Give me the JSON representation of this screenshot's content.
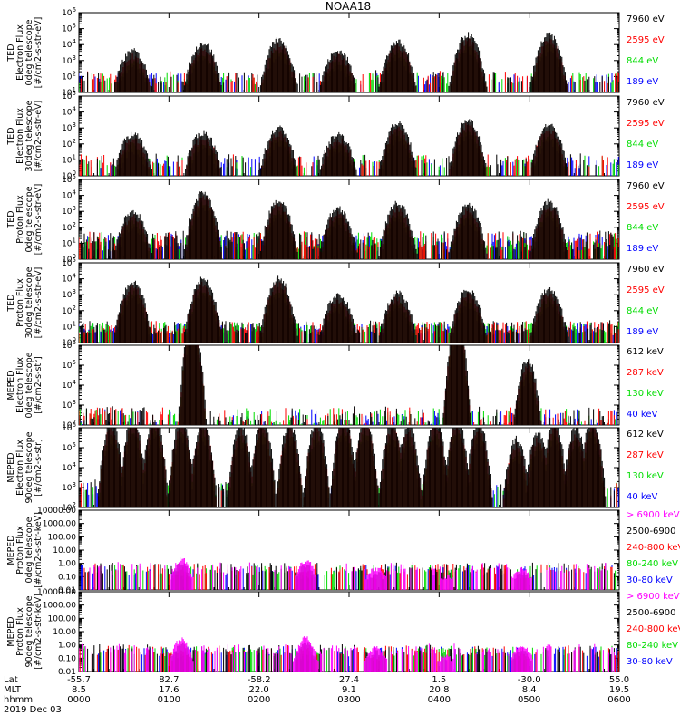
{
  "chart_data": {
    "type": "line",
    "title": "NOAA18",
    "date_label": "2019 Dec 03",
    "x_axis": {
      "row_labels": [
        "Lat",
        "MLT",
        "hhmm"
      ],
      "ticks": [
        {
          "Lat": "-55.7",
          "MLT": "8.5",
          "hhmm": "0000"
        },
        {
          "Lat": "82.7",
          "MLT": "17.6",
          "hhmm": "0100"
        },
        {
          "Lat": "-58.2",
          "MLT": "22.0",
          "hhmm": "0200"
        },
        {
          "Lat": "27.4",
          "MLT": "9.1",
          "hhmm": "0300"
        },
        {
          "Lat": "1.5",
          "MLT": "20.8",
          "hhmm": "0400"
        },
        {
          "Lat": "-30.0",
          "MLT": "8.4",
          "hhmm": "0500"
        },
        {
          "Lat": "55.0",
          "MLT": "19.5",
          "hhmm": "0600"
        }
      ]
    },
    "panels": [
      {
        "ylabel": [
          "TED",
          "Electron Flux",
          "0deg telescope",
          "[#/cm2-s-str-eV]"
        ],
        "yscale": "log",
        "ytick_labels": [
          "10^1",
          "10^2",
          "10^3",
          "10^4",
          "10^5",
          "10^6"
        ],
        "series": [
          {
            "name": "7960 eV",
            "color": "#000000"
          },
          {
            "name": "2595 eV",
            "color": "#ff0000"
          },
          {
            "name": "844 eV",
            "color": "#00dd00"
          },
          {
            "name": "189 eV",
            "color": "#0000ff"
          }
        ],
        "events": [
          [
            0.1,
            2.6
          ],
          [
            0.23,
            3.1
          ],
          [
            0.37,
            3.3
          ],
          [
            0.48,
            2.6
          ],
          [
            0.59,
            3.2
          ],
          [
            0.72,
            3.6
          ],
          [
            0.87,
            3.6
          ]
        ],
        "style": "electron"
      },
      {
        "ylabel": [
          "TED",
          "Electron Flux",
          "30deg telescope",
          "[#/cm2-s-str-eV]"
        ],
        "yscale": "log",
        "ytick_labels": [
          "10^0",
          "10^1",
          "10^2",
          "10^3",
          "10^4",
          "10^5"
        ],
        "series": [
          {
            "name": "7960 eV",
            "color": "#000000"
          },
          {
            "name": "2595 eV",
            "color": "#ff0000"
          },
          {
            "name": "844 eV",
            "color": "#00dd00"
          },
          {
            "name": "189 eV",
            "color": "#0000ff"
          }
        ],
        "events": [
          [
            0.1,
            2.6
          ],
          [
            0.23,
            2.7
          ],
          [
            0.37,
            3.0
          ],
          [
            0.48,
            2.6
          ],
          [
            0.59,
            3.3
          ],
          [
            0.72,
            3.5
          ],
          [
            0.87,
            3.2
          ]
        ],
        "style": "electron"
      },
      {
        "ylabel": [
          "TED",
          "Proton Flux",
          "0deg telescope",
          "[#/cm2-s-str-eV]"
        ],
        "yscale": "log",
        "ytick_labels": [
          "10^0",
          "10^1",
          "10^2",
          "10^3",
          "10^4",
          "10^5"
        ],
        "series": [
          {
            "name": "7960 eV",
            "color": "#000000"
          },
          {
            "name": "2595 eV",
            "color": "#ff0000"
          },
          {
            "name": "844 eV",
            "color": "#00dd00"
          },
          {
            "name": "189 eV",
            "color": "#0000ff"
          }
        ],
        "events": [
          [
            0.1,
            3.0
          ],
          [
            0.23,
            4.2
          ],
          [
            0.37,
            3.7
          ],
          [
            0.48,
            3.2
          ],
          [
            0.59,
            3.5
          ],
          [
            0.72,
            3.4
          ],
          [
            0.87,
            3.6
          ]
        ],
        "style": "proton"
      },
      {
        "ylabel": [
          "TED",
          "Proton Flux",
          "30deg telescope",
          "[#/cm2-s-str-eV]"
        ],
        "yscale": "log",
        "ytick_labels": [
          "10^0",
          "10^1",
          "10^2",
          "10^3",
          "10^4",
          "10^5"
        ],
        "series": [
          {
            "name": "7960 eV",
            "color": "#000000"
          },
          {
            "name": "2595 eV",
            "color": "#ff0000"
          },
          {
            "name": "844 eV",
            "color": "#00dd00"
          },
          {
            "name": "189 eV",
            "color": "#0000ff"
          }
        ],
        "events": [
          [
            0.1,
            3.8
          ],
          [
            0.23,
            4.0
          ],
          [
            0.37,
            4.0
          ],
          [
            0.48,
            3.0
          ],
          [
            0.59,
            3.1
          ],
          [
            0.72,
            3.3
          ],
          [
            0.87,
            3.4
          ]
        ],
        "style": "proton30"
      },
      {
        "ylabel": [
          "MEPED",
          "Electron Flux",
          "0deg telescope",
          "[#/cm2-s-str]"
        ],
        "yscale": "log",
        "ytick_labels": [
          "10^2",
          "10^3",
          "10^4",
          "10^5",
          "10^6"
        ],
        "series": [
          {
            "name": "612 keV",
            "color": "#000000"
          },
          {
            "name": "287 keV",
            "color": "#ff0000"
          },
          {
            "name": "130 keV",
            "color": "#00dd00"
          },
          {
            "name": "40 keV",
            "color": "#0000ff"
          }
        ],
        "events": [
          [
            0.21,
            5.4
          ],
          [
            0.7,
            5.4
          ],
          [
            0.83,
            3.3
          ]
        ],
        "style": "meped_e0"
      },
      {
        "ylabel": [
          "MEPED",
          "Electron Flux",
          "90deg telescope",
          "[#/cm2-s-str]"
        ],
        "yscale": "log",
        "ytick_labels": [
          "10^2",
          "10^3",
          "10^4",
          "10^5",
          "10^6"
        ],
        "series": [
          {
            "name": "612 keV",
            "color": "#000000"
          },
          {
            "name": "287 keV",
            "color": "#ff0000"
          },
          {
            "name": "130 keV",
            "color": "#00dd00"
          },
          {
            "name": "40 keV",
            "color": "#0000ff"
          }
        ],
        "events": [
          [
            0.06,
            4.3
          ],
          [
            0.1,
            4.6
          ],
          [
            0.14,
            4.6
          ],
          [
            0.19,
            4.5
          ],
          [
            0.23,
            4.4
          ],
          [
            0.3,
            4.1
          ],
          [
            0.34,
            4.4
          ],
          [
            0.39,
            4.2
          ],
          [
            0.44,
            4.3
          ],
          [
            0.49,
            4.6
          ],
          [
            0.53,
            4.5
          ],
          [
            0.58,
            4.3
          ],
          [
            0.61,
            4.1
          ],
          [
            0.66,
            4.4
          ],
          [
            0.7,
            4.5
          ],
          [
            0.74,
            4.3
          ],
          [
            0.81,
            3.4
          ],
          [
            0.85,
            3.8
          ],
          [
            0.88,
            4.3
          ],
          [
            0.92,
            4.0
          ],
          [
            0.95,
            4.5
          ]
        ],
        "style": "meped_e90"
      },
      {
        "ylabel": [
          "MEPED",
          "Proton Flux",
          "0deg telescope",
          "[#/cm2-s-str-keV]"
        ],
        "yscale": "log",
        "ytick_labels": [
          "0.01",
          "0.10",
          "1.00",
          "10.00",
          "100.00",
          "1000.00",
          "10000.00"
        ],
        "series": [
          {
            "name": "> 6900 keV",
            "color": "#ff00ff"
          },
          {
            "name": "2500-6900",
            "color": "#000000"
          },
          {
            "name": "240-800 keV",
            "color": "#ff0000"
          },
          {
            "name": "80-240 keV",
            "color": "#00dd00"
          },
          {
            "name": "30-80 keV",
            "color": "#0000ff"
          }
        ],
        "events": [
          [
            0.19,
            2.3
          ],
          [
            0.42,
            2.2
          ],
          [
            0.55,
            1.6
          ],
          [
            0.68,
            1.0
          ],
          [
            0.82,
            1.6
          ]
        ],
        "style": "meped_p"
      },
      {
        "ylabel": [
          "MEPED",
          "Proton Flux",
          "90deg telescope",
          "[#/cm2-s-str-keV]"
        ],
        "yscale": "log",
        "ytick_labels": [
          "0.01",
          "0.10",
          "1.00",
          "10.00",
          "100.00",
          "1000.00",
          "10000.00"
        ],
        "series": [
          {
            "name": "> 6900 keV",
            "color": "#ff00ff"
          },
          {
            "name": "2500-6900",
            "color": "#000000"
          },
          {
            "name": "240-800 keV",
            "color": "#ff0000"
          },
          {
            "name": "80-240 keV",
            "color": "#00dd00"
          },
          {
            "name": "30-80 keV",
            "color": "#0000ff"
          }
        ],
        "events": [
          [
            0.19,
            2.4
          ],
          [
            0.42,
            2.5
          ],
          [
            0.55,
            1.8
          ],
          [
            0.68,
            1.1
          ],
          [
            0.82,
            2.0
          ]
        ],
        "style": "meped_p"
      }
    ]
  }
}
